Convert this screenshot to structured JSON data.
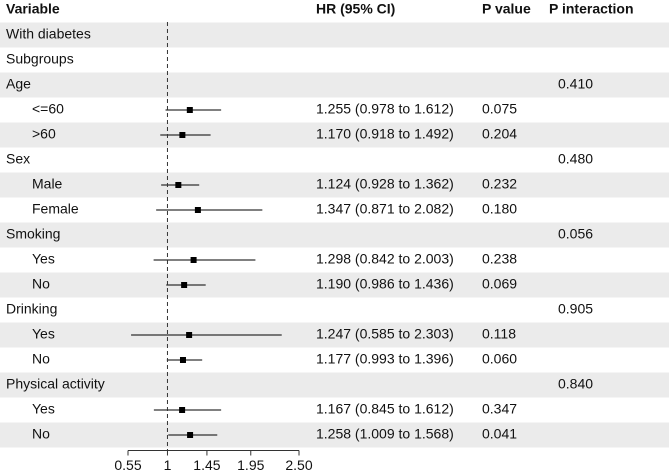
{
  "chart_data": {
    "type": "forest",
    "columns": [
      "Variable",
      "HR (95% CI)",
      "P value",
      "P interaction"
    ],
    "header_rows": [
      "With diabetes",
      "Subgroups"
    ],
    "groups": [
      {
        "name": "Age",
        "p_interaction": "0.410",
        "subgroups": [
          {
            "label": "<=60",
            "hr": 1.255,
            "lower": 0.978,
            "upper": 1.612,
            "hr_text": "1.255 (0.978 to 1.612)",
            "p_value": "0.075"
          },
          {
            "label": ">60",
            "hr": 1.17,
            "lower": 0.918,
            "upper": 1.492,
            "hr_text": "1.170 (0.918 to 1.492)",
            "p_value": "0.204"
          }
        ]
      },
      {
        "name": "Sex",
        "p_interaction": "0.480",
        "subgroups": [
          {
            "label": "Male",
            "hr": 1.124,
            "lower": 0.928,
            "upper": 1.362,
            "hr_text": "1.124 (0.928 to 1.362)",
            "p_value": "0.232"
          },
          {
            "label": "Female",
            "hr": 1.347,
            "lower": 0.871,
            "upper": 2.082,
            "hr_text": "1.347 (0.871 to 2.082)",
            "p_value": "0.180"
          }
        ]
      },
      {
        "name": "Smoking",
        "p_interaction": "0.056",
        "subgroups": [
          {
            "label": "Yes",
            "hr": 1.298,
            "lower": 0.842,
            "upper": 2.003,
            "hr_text": "1.298 (0.842 to 2.003)",
            "p_value": "0.238"
          },
          {
            "label": "No",
            "hr": 1.19,
            "lower": 0.986,
            "upper": 1.436,
            "hr_text": "1.190 (0.986 to 1.436)",
            "p_value": "0.069"
          }
        ]
      },
      {
        "name": "Drinking",
        "p_interaction": "0.905",
        "subgroups": [
          {
            "label": "Yes",
            "hr": 1.247,
            "lower": 0.585,
            "upper": 2.303,
            "hr_text": "1.247 (0.585 to 2.303)",
            "p_value": "0.118"
          },
          {
            "label": "No",
            "hr": 1.177,
            "lower": 0.993,
            "upper": 1.396,
            "hr_text": "1.177 (0.993 to 1.396)",
            "p_value": "0.060"
          }
        ]
      },
      {
        "name": "Physical activity",
        "p_interaction": "0.840",
        "subgroups": [
          {
            "label": "Yes",
            "hr": 1.167,
            "lower": 0.845,
            "upper": 1.612,
            "hr_text": "1.167 (0.845 to 1.612)",
            "p_value": "0.347"
          },
          {
            "label": "No",
            "hr": 1.258,
            "lower": 1.009,
            "upper": 1.568,
            "hr_text": "1.258 (1.009 to 1.568)",
            "p_value": "0.041"
          }
        ]
      }
    ],
    "reference": 1,
    "xlim": [
      0.55,
      2.5
    ],
    "xticks": [
      0.55,
      1,
      1.45,
      1.95,
      {
        "value": 2.5,
        "label": "2.50"
      }
    ]
  }
}
